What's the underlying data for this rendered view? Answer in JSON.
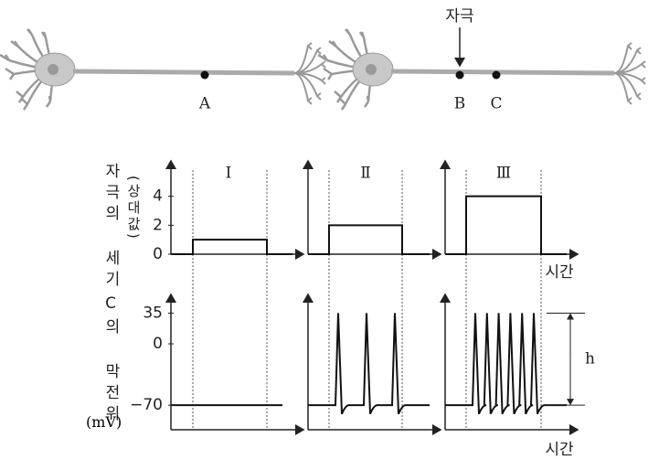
{
  "neurons": {
    "stimulus_label": "자극",
    "points": [
      "A",
      "B",
      "C"
    ]
  },
  "stimulus_chart": {
    "y_label": "자극의 세기",
    "y_unit": "(상대값)",
    "yticks": [
      0,
      2,
      4
    ],
    "ylim": [
      0,
      6
    ],
    "x_label": "시간"
  },
  "potential_chart": {
    "y_label": "C의 막전위",
    "y_unit": "(mV)",
    "yticks": [
      {
        "value": -70,
        "label": "−70"
      },
      0,
      35
    ],
    "ylim": [
      -98,
      48
    ],
    "x_label": "시간",
    "amplitude_label": "h"
  },
  "panels": [
    {
      "label": "Ⅰ",
      "stimulus": 1,
      "spikes": 0
    },
    {
      "label": "Ⅱ",
      "stimulus": 2,
      "spikes": 3
    },
    {
      "label": "Ⅲ",
      "stimulus": 4,
      "spikes": 6
    }
  ]
}
